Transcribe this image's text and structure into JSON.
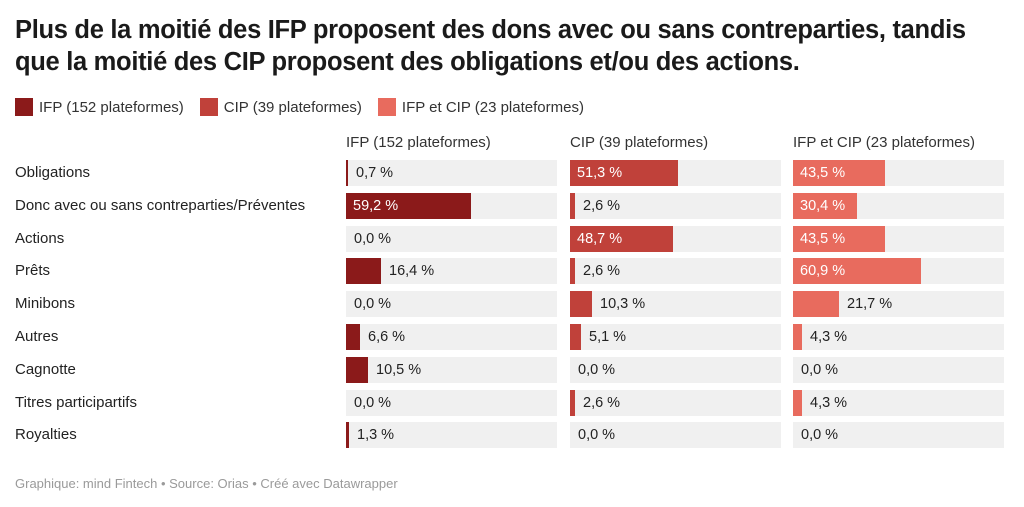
{
  "title": "Plus de la moitié des IFP proposent des dons avec ou sans contreparties, tandis que la moitié des CIP proposent des obligations et/ou des actions.",
  "footer": "Graphique: mind Fintech • Source: Orias • Créé avec Datawrapper",
  "colors": {
    "ifp": "#8b1a1a",
    "cip": "#c0413a",
    "both": "#e86b5e",
    "background_bar": "#f0f0f0"
  },
  "chart_data": {
    "type": "bar",
    "orientation": "horizontal",
    "categories": [
      "Obligations",
      "Donc avec ou sans contreparties/Préventes",
      "Actions",
      "Prêts",
      "Minibons",
      "Autres",
      "Cagnotte",
      "Titres participartifs",
      "Royalties"
    ],
    "series": [
      {
        "name": "IFP (152 plateformes)",
        "values": [
          0.7,
          59.2,
          0.0,
          16.4,
          0.0,
          6.6,
          10.5,
          0.0,
          1.3
        ],
        "labels": [
          "0,7 %",
          "59,2 %",
          "0,0 %",
          "16,4 %",
          "0,0 %",
          "6,6 %",
          "10,5 %",
          "0,0 %",
          "1,3 %"
        ]
      },
      {
        "name": "CIP (39 plateformes)",
        "values": [
          51.3,
          2.6,
          48.7,
          2.6,
          10.3,
          5.1,
          0.0,
          2.6,
          0.0
        ],
        "labels": [
          "51,3 %",
          "2,6 %",
          "48,7 %",
          "2,6 %",
          "10,3 %",
          "5,1 %",
          "0,0 %",
          "2,6 %",
          "0,0 %"
        ]
      },
      {
        "name": "IFP et CIP (23 plateformes)",
        "values": [
          43.5,
          30.4,
          43.5,
          60.9,
          21.7,
          4.3,
          0.0,
          4.3,
          0.0
        ],
        "labels": [
          "43,5 %",
          "30,4 %",
          "43,5 %",
          "60,9 %",
          "21,7 %",
          "4,3 %",
          "0,0 %",
          "4,3 %",
          "0,0 %"
        ]
      }
    ],
    "xlim": [
      0,
      100
    ],
    "legend": "top-left"
  }
}
